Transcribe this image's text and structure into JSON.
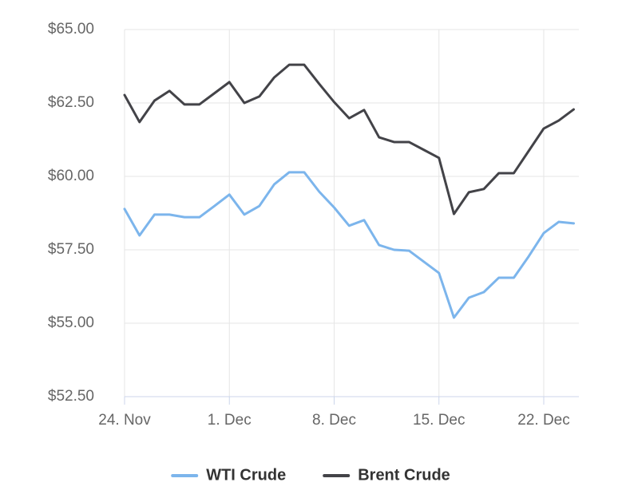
{
  "chart_data": {
    "type": "line",
    "categories": [
      "24. Nov",
      null,
      null,
      null,
      null,
      null,
      null,
      "1. Dec",
      null,
      null,
      null,
      null,
      null,
      null,
      "8. Dec",
      null,
      null,
      null,
      null,
      null,
      null,
      "15. Dec",
      null,
      null,
      null,
      null,
      null,
      null,
      "22. Dec",
      null,
      null
    ],
    "series": [
      {
        "name": "WTI Crude",
        "color": "#7cb5ec",
        "values": [
          58.89,
          57.99,
          58.7,
          58.7,
          58.61,
          58.61,
          58.99,
          59.38,
          58.7,
          58.99,
          59.73,
          60.14,
          60.14,
          59.48,
          58.94,
          58.32,
          58.51,
          57.66,
          57.5,
          57.47,
          57.09,
          56.71,
          55.19,
          55.87,
          56.06,
          56.55,
          56.55,
          57.28,
          58.07,
          58.45,
          58.4
        ]
      },
      {
        "name": "Brent Crude",
        "color": "#434348",
        "values": [
          62.77,
          61.85,
          62.58,
          62.91,
          62.45,
          62.45,
          62.83,
          63.21,
          62.5,
          62.72,
          63.37,
          63.8,
          63.8,
          63.15,
          62.53,
          61.98,
          62.26,
          61.33,
          61.17,
          61.17,
          60.9,
          60.63,
          58.72,
          59.46,
          59.57,
          60.11,
          60.11,
          60.87,
          61.63,
          61.9,
          62.28
        ]
      }
    ],
    "ylim": [
      52.5,
      65
    ],
    "yticks": [
      {
        "value": 52.5,
        "label": "$52.50"
      },
      {
        "value": 55,
        "label": "$55.00"
      },
      {
        "value": 57.5,
        "label": "$57.50"
      },
      {
        "value": 60,
        "label": "$60.00"
      },
      {
        "value": 62.5,
        "label": "$62.50"
      },
      {
        "value": 65,
        "label": "$65.00"
      }
    ],
    "grid": true,
    "legend": "bottom"
  }
}
